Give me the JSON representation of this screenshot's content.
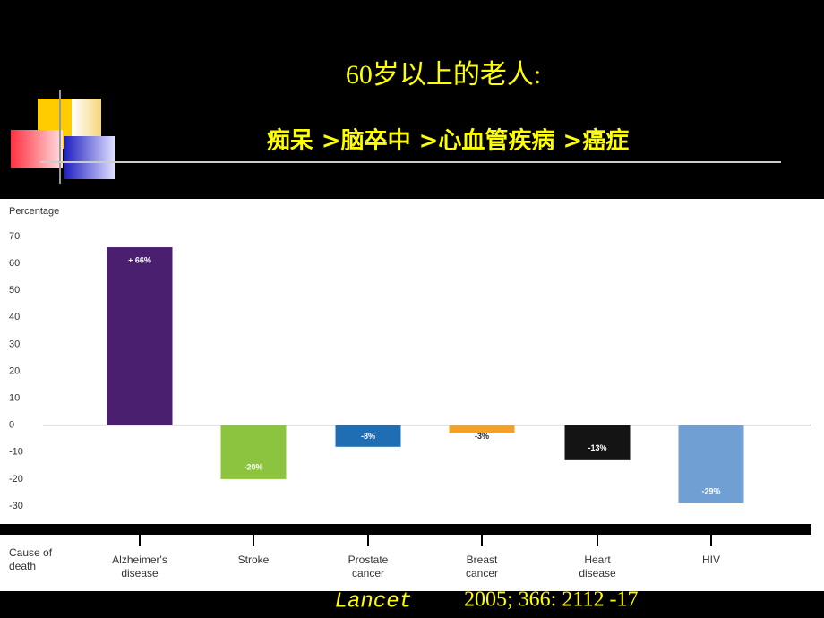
{
  "heading": {
    "line1": "60岁以上的老人:",
    "line2": "痴呆 >脑卒中 >心血管疾病 >癌症"
  },
  "chart_data": {
    "type": "bar",
    "y_label": "Percentage",
    "x_label": "Cause of death",
    "categories": [
      "Alzheimer's disease",
      "Stroke",
      "Prostate cancer",
      "Breast cancer",
      "Heart disease",
      "HIV"
    ],
    "values": [
      66,
      -20,
      -8,
      -3,
      -13,
      -29
    ],
    "value_labels": [
      "+ 66%",
      "-20%",
      "-8%",
      "-3%",
      "-13%",
      "-29%"
    ],
    "colors": [
      "#4b1f70",
      "#8cc43f",
      "#1f6db3",
      "#f2a229",
      "#141414",
      "#6f9fd3"
    ],
    "ylim": [
      -30,
      70
    ],
    "yticks": [
      70,
      60,
      50,
      40,
      30,
      20,
      10,
      0,
      -10,
      -20,
      -30
    ],
    "grid": false
  },
  "citation": {
    "journal": "Lancet",
    "details": "2005; 366: 2112 -17"
  }
}
